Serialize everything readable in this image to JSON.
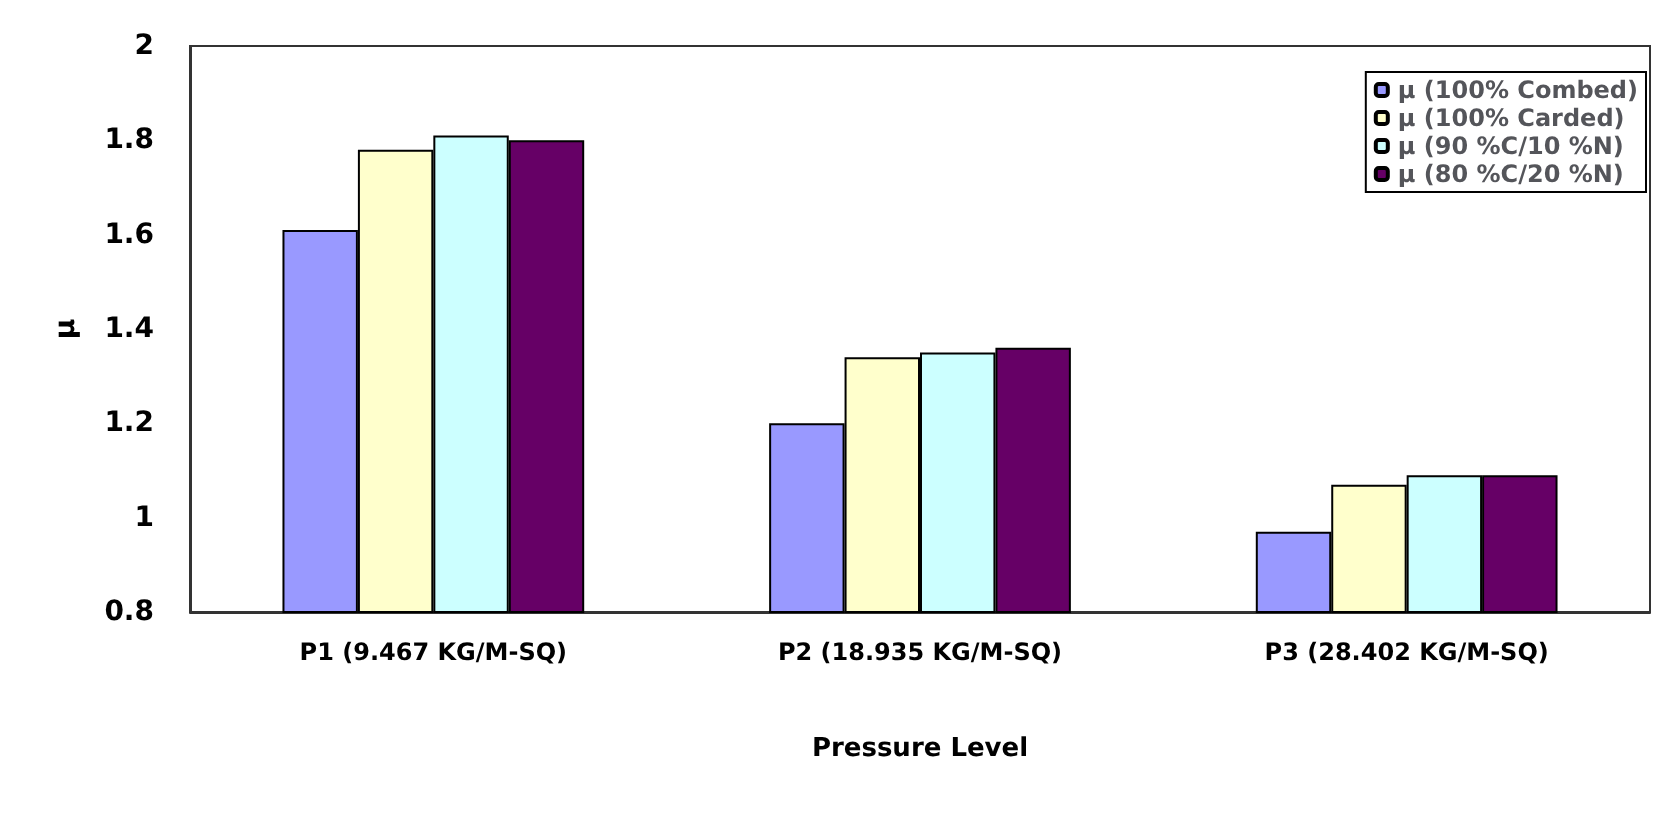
{
  "chart_data": {
    "type": "bar",
    "xlabel": "Pressure Level",
    "ylabel": "μ",
    "categories": [
      "P1 (9.467 KG/M-SQ)",
      "P2 (18.935 KG/M-SQ)",
      "P3 (28.402 KG/M-SQ)"
    ],
    "series": [
      {
        "name": "μ (100% Combed)",
        "color": "#9999ff",
        "values": [
          1.61,
          1.2,
          0.97
        ]
      },
      {
        "name": "μ (100% Carded)",
        "color": "#ffffcc",
        "values": [
          1.78,
          1.34,
          1.07
        ]
      },
      {
        "name": "μ (90 %C/10 %N)",
        "color": "#ccffff",
        "values": [
          1.81,
          1.35,
          1.09
        ]
      },
      {
        "name": "μ (80 %C/20 %N)",
        "color": "#660066",
        "values": [
          1.8,
          1.36,
          1.09
        ]
      }
    ],
    "ylim": [
      0.8,
      2
    ],
    "yticks": [
      0.8,
      1,
      1.2,
      1.4,
      1.6,
      1.8,
      2
    ],
    "grid": false,
    "legend": "top right"
  }
}
